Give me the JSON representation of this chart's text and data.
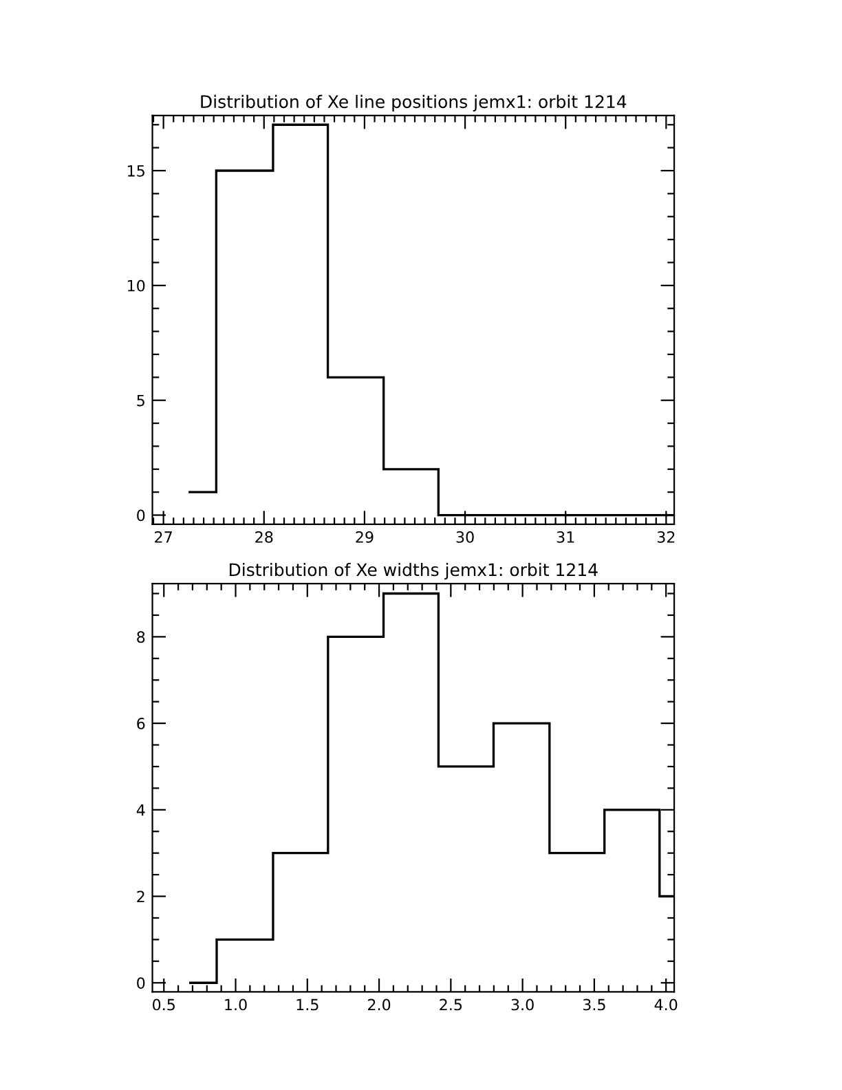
{
  "chart_data": [
    {
      "type": "histogram",
      "title": "Distribution of Xe line positions jemx1: orbit 1214",
      "bins": [
        27.25,
        27.525,
        28.09,
        28.635,
        29.19,
        29.735,
        32.08
      ],
      "values": [
        1,
        15,
        17,
        6,
        2,
        0
      ],
      "color": "#000000",
      "xlim": [
        26.89,
        32.08
      ],
      "ylim": [
        -0.4,
        17.4
      ],
      "xticks": [
        {
          "value": 26.9,
          "label": null
        },
        27,
        {
          "value": 27.1,
          "label": null
        },
        {
          "value": 27.2,
          "label": null
        },
        {
          "value": 27.3,
          "label": null
        },
        {
          "value": 27.4,
          "label": null
        },
        {
          "value": 27.5,
          "label": null
        },
        {
          "value": 27.6,
          "label": null
        },
        {
          "value": 27.7,
          "label": null
        },
        {
          "value": 27.8,
          "label": null
        },
        {
          "value": 27.9,
          "label": null
        },
        28,
        {
          "value": 28.1,
          "label": null
        },
        {
          "value": 28.2,
          "label": null
        },
        {
          "value": 28.3,
          "label": null
        },
        {
          "value": 28.4,
          "label": null
        },
        {
          "value": 28.5,
          "label": null
        },
        {
          "value": 28.6,
          "label": null
        },
        {
          "value": 28.7,
          "label": null
        },
        {
          "value": 28.8,
          "label": null
        },
        {
          "value": 28.9,
          "label": null
        },
        29,
        {
          "value": 29.1,
          "label": null
        },
        {
          "value": 29.2,
          "label": null
        },
        {
          "value": 29.3,
          "label": null
        },
        {
          "value": 29.4,
          "label": null
        },
        {
          "value": 29.5,
          "label": null
        },
        {
          "value": 29.6,
          "label": null
        },
        {
          "value": 29.7,
          "label": null
        },
        {
          "value": 29.8,
          "label": null
        },
        {
          "value": 29.9,
          "label": null
        },
        30,
        {
          "value": 30.1,
          "label": null
        },
        {
          "value": 30.2,
          "label": null
        },
        {
          "value": 30.3,
          "label": null
        },
        {
          "value": 30.4,
          "label": null
        },
        {
          "value": 30.5,
          "label": null
        },
        {
          "value": 30.6,
          "label": null
        },
        {
          "value": 30.7,
          "label": null
        },
        {
          "value": 30.8,
          "label": null
        },
        {
          "value": 30.9,
          "label": null
        },
        31,
        {
          "value": 31.1,
          "label": null
        },
        {
          "value": 31.2,
          "label": null
        },
        {
          "value": 31.3,
          "label": null
        },
        {
          "value": 31.4,
          "label": null
        },
        {
          "value": 31.5,
          "label": null
        },
        {
          "value": 31.6,
          "label": null
        },
        {
          "value": 31.7,
          "label": null
        },
        {
          "value": 31.8,
          "label": null
        },
        {
          "value": 31.9,
          "label": null
        },
        32
      ],
      "yticks": [
        0,
        {
          "value": 1,
          "label": null
        },
        {
          "value": 2,
          "label": null
        },
        {
          "value": 3,
          "label": null
        },
        {
          "value": 4,
          "label": null
        },
        5,
        {
          "value": 6,
          "label": null
        },
        {
          "value": 7,
          "label": null
        },
        {
          "value": 8,
          "label": null
        },
        {
          "value": 9,
          "label": null
        },
        10,
        {
          "value": 11,
          "label": null
        },
        {
          "value": 12,
          "label": null
        },
        {
          "value": 13,
          "label": null
        },
        {
          "value": 14,
          "label": null
        },
        15,
        {
          "value": 16,
          "label": null
        },
        {
          "value": 17,
          "label": null
        }
      ],
      "grid": false
    },
    {
      "type": "histogram",
      "title": "Distribution of Xe widths jemx1: orbit 1214",
      "bins": [
        0.676,
        0.868,
        1.261,
        1.644,
        2.031,
        2.414,
        2.798,
        3.188,
        3.571,
        3.955,
        4.057
      ],
      "values": [
        0,
        1,
        3,
        8,
        9,
        5,
        6,
        3,
        4,
        2
      ],
      "color": "#000000",
      "xlim": [
        0.42,
        4.057
      ],
      "ylim": [
        -0.21,
        9.23
      ],
      "xticks": [
        {
          "value": 0.5,
          "label": "0.5"
        },
        {
          "value": 0.6,
          "label": null
        },
        {
          "value": 0.7,
          "label": null
        },
        {
          "value": 0.8,
          "label": null
        },
        {
          "value": 0.9,
          "label": null
        },
        {
          "value": 1.0,
          "label": "1.0"
        },
        {
          "value": 1.1,
          "label": null
        },
        {
          "value": 1.2,
          "label": null
        },
        {
          "value": 1.3,
          "label": null
        },
        {
          "value": 1.4,
          "label": null
        },
        {
          "value": 1.5,
          "label": "1.5"
        },
        {
          "value": 1.6,
          "label": null
        },
        {
          "value": 1.7,
          "label": null
        },
        {
          "value": 1.8,
          "label": null
        },
        {
          "value": 1.9,
          "label": null
        },
        {
          "value": 2.0,
          "label": "2.0"
        },
        {
          "value": 2.1,
          "label": null
        },
        {
          "value": 2.2,
          "label": null
        },
        {
          "value": 2.3,
          "label": null
        },
        {
          "value": 2.4,
          "label": null
        },
        {
          "value": 2.5,
          "label": "2.5"
        },
        {
          "value": 2.6,
          "label": null
        },
        {
          "value": 2.7,
          "label": null
        },
        {
          "value": 2.8,
          "label": null
        },
        {
          "value": 2.9,
          "label": null
        },
        {
          "value": 3.0,
          "label": "3.0"
        },
        {
          "value": 3.1,
          "label": null
        },
        {
          "value": 3.2,
          "label": null
        },
        {
          "value": 3.3,
          "label": null
        },
        {
          "value": 3.4,
          "label": null
        },
        {
          "value": 3.5,
          "label": "3.5"
        },
        {
          "value": 3.6,
          "label": null
        },
        {
          "value": 3.7,
          "label": null
        },
        {
          "value": 3.8,
          "label": null
        },
        {
          "value": 3.9,
          "label": null
        },
        {
          "value": 4.0,
          "label": "4.0"
        }
      ],
      "yticks": [
        0,
        {
          "value": 0.5,
          "label": null
        },
        {
          "value": 1,
          "label": null
        },
        {
          "value": 1.5,
          "label": null
        },
        2,
        {
          "value": 2.5,
          "label": null
        },
        {
          "value": 3,
          "label": null
        },
        {
          "value": 3.5,
          "label": null
        },
        4,
        {
          "value": 4.5,
          "label": null
        },
        {
          "value": 5,
          "label": null
        },
        {
          "value": 5.5,
          "label": null
        },
        6,
        {
          "value": 6.5,
          "label": null
        },
        {
          "value": 7,
          "label": null
        },
        {
          "value": 7.5,
          "label": null
        },
        8,
        {
          "value": 8.5,
          "label": null
        },
        {
          "value": 9,
          "label": null
        }
      ],
      "grid": false
    }
  ]
}
